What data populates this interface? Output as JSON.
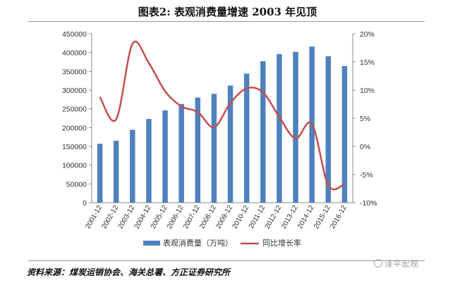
{
  "title": "图表2:   表观消费量增速 2003 年见顶",
  "source": "资料来源：煤炭运销协会、海关总署、方正证券研究所",
  "watermark": "泽平宏观",
  "chart_data": {
    "type": "bar",
    "categories": [
      "2001-12",
      "2002-12",
      "2003-12",
      "2004-12",
      "2005-12",
      "2006-12",
      "2007-12",
      "2008-12",
      "2009-12",
      "2010-12",
      "2011-12",
      "2012-12",
      "2013-12",
      "2014-12",
      "2015-12",
      "2016-12"
    ],
    "series": [
      {
        "name": "表观消费量（万吨）",
        "type": "bar",
        "axis": "left",
        "color": "#4f81bd",
        "values": [
          157000,
          165000,
          194000,
          223000,
          246000,
          263000,
          280000,
          290000,
          312000,
          344000,
          377000,
          396000,
          402000,
          416000,
          390000,
          364000
        ]
      },
      {
        "name": "同比增长率",
        "type": "line",
        "axis": "right",
        "color": "#c0504d",
        "values": [
          8.8,
          4.8,
          18.2,
          14.8,
          9.8,
          7.1,
          6.1,
          3.4,
          7.7,
          10.3,
          9.6,
          5.2,
          1.4,
          4.0,
          -6.9,
          -6.7
        ]
      }
    ],
    "y_left": {
      "min": 0,
      "max": 450000,
      "ticks": [
        "0",
        "50000",
        "100000",
        "150000",
        "200000",
        "250000",
        "300000",
        "350000",
        "400000",
        "450000"
      ]
    },
    "y_right": {
      "min": -10,
      "max": 20,
      "ticks": [
        "-10%",
        "-5%",
        "0%",
        "5%",
        "10%",
        "15%",
        "20%"
      ]
    },
    "grid": false,
    "legend": "bottom"
  }
}
